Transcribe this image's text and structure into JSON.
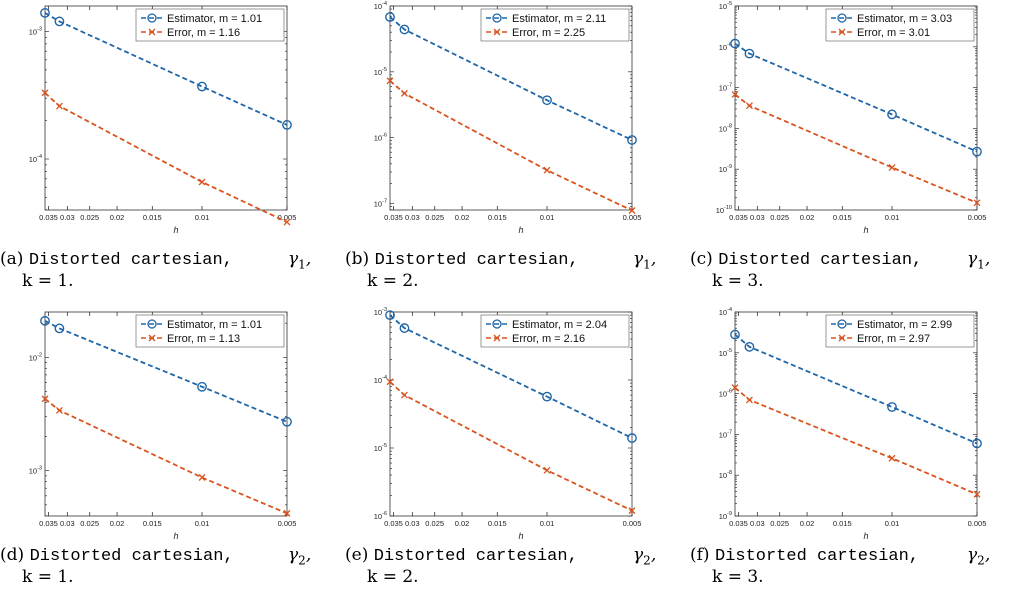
{
  "colors": {
    "estimator": "#1f66a8",
    "error": "#d9541e",
    "axis": "#333333"
  },
  "figures": [
    {
      "tag": "(a)",
      "caption_text": "Distorted cartesian,",
      "gamma_base": "γ",
      "gamma_sub": "1",
      "k_line": "k = 1."
    },
    {
      "tag": "(b)",
      "caption_text": "Distorted cartesian,",
      "gamma_base": "γ",
      "gamma_sub": "1",
      "k_line": "k = 2."
    },
    {
      "tag": "(c)",
      "caption_text": "Distorted cartesian,",
      "gamma_base": "γ",
      "gamma_sub": "1",
      "k_line": "k = 3."
    },
    {
      "tag": "(d)",
      "caption_text": "Distorted cartesian,",
      "gamma_base": "γ",
      "gamma_sub": "2",
      "k_line": "k = 1."
    },
    {
      "tag": "(e)",
      "caption_text": "Distorted cartesian,",
      "gamma_base": "γ",
      "gamma_sub": "2",
      "k_line": "k = 2."
    },
    {
      "tag": "(f)",
      "caption_text": "Distorted cartesian,",
      "gamma_base": "γ",
      "gamma_sub": "2",
      "k_line": "k = 3."
    }
  ],
  "chart_data": [
    {
      "type": "line",
      "xlabel": "h",
      "x_scale": "log-reversed",
      "y_scale": "log",
      "x_ticks": [
        "0.035",
        "0.03",
        "0.025",
        "0.02",
        "0.015",
        "0.01",
        "0.005"
      ],
      "x_tick_values": [
        0.035,
        0.03,
        0.025,
        0.02,
        0.015,
        0.01,
        0.005
      ],
      "xlim": [
        0.036,
        0.005
      ],
      "ylim_exp": [
        -4.4,
        -2.8
      ],
      "y_ticks": [
        {
          "base": "10",
          "exp": "-3"
        },
        {
          "base": "10",
          "exp": "-4"
        }
      ],
      "y_tick_exps": [
        -3,
        -4
      ],
      "legend_position": "top-right",
      "x": [
        0.036,
        0.032,
        0.01,
        0.005
      ],
      "series": [
        {
          "name": "Estimator, m = 1.01",
          "marker": "circle",
          "values": [
            0.0014,
            0.0012,
            0.00037,
            0.000185
          ]
        },
        {
          "name": "Error, m = 1.16",
          "marker": "x",
          "values": [
            0.00033,
            0.00026,
            6.6e-05,
            3.2e-05
          ]
        }
      ]
    },
    {
      "type": "line",
      "xlabel": "h",
      "x_scale": "log-reversed",
      "y_scale": "log",
      "x_ticks": [
        "0.035",
        "0.03",
        "0.025",
        "0.02",
        "0.015",
        "0.01",
        "0.005"
      ],
      "x_tick_values": [
        0.035,
        0.03,
        0.025,
        0.02,
        0.015,
        0.01,
        0.005
      ],
      "xlim": [
        0.036,
        0.005
      ],
      "ylim_exp": [
        -7.1,
        -4
      ],
      "y_ticks": [
        {
          "base": "10",
          "exp": "-4"
        },
        {
          "base": "10",
          "exp": "-5"
        },
        {
          "base": "10",
          "exp": "-6"
        },
        {
          "base": "10",
          "exp": "-7"
        }
      ],
      "y_tick_exps": [
        -4,
        -5,
        -6,
        -7
      ],
      "legend_position": "top-right",
      "x": [
        0.036,
        0.032,
        0.01,
        0.005
      ],
      "series": [
        {
          "name": "Estimator, m = 2.11",
          "marker": "circle",
          "values": [
            6.8e-05,
            4.4e-05,
            3.7e-06,
            9.2e-07
          ]
        },
        {
          "name": "Error, m = 2.25",
          "marker": "x",
          "values": [
            7.3e-06,
            4.7e-06,
            3.2e-07,
            7.8e-08
          ]
        }
      ]
    },
    {
      "type": "line",
      "xlabel": "h",
      "x_scale": "log-reversed",
      "y_scale": "log",
      "x_ticks": [
        "0.035",
        "0.03",
        "0.025",
        "0.02",
        "0.015",
        "0.01",
        "0.005"
      ],
      "x_tick_values": [
        0.035,
        0.03,
        0.025,
        0.02,
        0.015,
        0.01,
        0.005
      ],
      "xlim": [
        0.036,
        0.005
      ],
      "ylim_exp": [
        -10,
        -5
      ],
      "y_ticks": [
        {
          "base": "10",
          "exp": "-5"
        },
        {
          "base": "10",
          "exp": "-6"
        },
        {
          "base": "10",
          "exp": "-7"
        },
        {
          "base": "10",
          "exp": "-8"
        },
        {
          "base": "10",
          "exp": "-9"
        },
        {
          "base": "10",
          "exp": "-10"
        }
      ],
      "y_tick_exps": [
        -5,
        -6,
        -7,
        -8,
        -9,
        -10
      ],
      "legend_position": "top-right",
      "x": [
        0.036,
        0.032,
        0.01,
        0.005
      ],
      "series": [
        {
          "name": "Estimator, m = 3.03",
          "marker": "circle",
          "values": [
            1.2e-06,
            6.8e-07,
            2.2e-08,
            2.7e-09
          ]
        },
        {
          "name": "Error, m = 3.01",
          "marker": "x",
          "values": [
            6.8e-08,
            3.6e-08,
            1.1e-09,
            1.5e-10
          ]
        }
      ]
    },
    {
      "type": "line",
      "xlabel": "h",
      "x_scale": "log-reversed",
      "y_scale": "log",
      "x_ticks": [
        "0.035",
        "0.03",
        "0.025",
        "0.02",
        "0.015",
        "0.01",
        "0.005"
      ],
      "x_tick_values": [
        0.035,
        0.03,
        0.025,
        0.02,
        0.015,
        0.01,
        0.005
      ],
      "xlim": [
        0.036,
        0.005
      ],
      "ylim_exp": [
        -3.4,
        -1.6
      ],
      "y_ticks": [
        {
          "base": "10",
          "exp": "-2"
        },
        {
          "base": "10",
          "exp": "-3"
        }
      ],
      "y_tick_exps": [
        -2,
        -3
      ],
      "legend_position": "top-right",
      "x": [
        0.036,
        0.032,
        0.01,
        0.005
      ],
      "series": [
        {
          "name": "Estimator, m = 1.01",
          "marker": "circle",
          "values": [
            0.021,
            0.018,
            0.0055,
            0.0027
          ]
        },
        {
          "name": "Error, m = 1.13",
          "marker": "x",
          "values": [
            0.0043,
            0.0034,
            0.00087,
            0.00042
          ]
        }
      ]
    },
    {
      "type": "line",
      "xlabel": "h",
      "x_scale": "log-reversed",
      "y_scale": "log",
      "x_ticks": [
        "0.035",
        "0.03",
        "0.025",
        "0.02",
        "0.015",
        "0.01",
        "0.005"
      ],
      "x_tick_values": [
        0.035,
        0.03,
        0.025,
        0.02,
        0.015,
        0.01,
        0.005
      ],
      "xlim": [
        0.036,
        0.005
      ],
      "ylim_exp": [
        -6,
        -3
      ],
      "y_ticks": [
        {
          "base": "10",
          "exp": "-3"
        },
        {
          "base": "10",
          "exp": "-4"
        },
        {
          "base": "10",
          "exp": "-5"
        },
        {
          "base": "10",
          "exp": "-6"
        }
      ],
      "y_tick_exps": [
        -3,
        -4,
        -5,
        -6
      ],
      "legend_position": "top-right",
      "x": [
        0.036,
        0.032,
        0.01,
        0.005
      ],
      "series": [
        {
          "name": "Estimator, m = 2.04",
          "marker": "circle",
          "values": [
            0.0009,
            0.00058,
            5.7e-05,
            1.4e-05
          ]
        },
        {
          "name": "Error, m = 2.16",
          "marker": "x",
          "values": [
            9.4e-05,
            6e-05,
            4.7e-06,
            1.2e-06
          ]
        }
      ]
    },
    {
      "type": "line",
      "xlabel": "h",
      "x_scale": "log-reversed",
      "y_scale": "log",
      "x_ticks": [
        "0.035",
        "0.03",
        "0.025",
        "0.02",
        "0.015",
        "0.01",
        "0.005"
      ],
      "x_tick_values": [
        0.035,
        0.03,
        0.025,
        0.02,
        0.015,
        0.01,
        0.005
      ],
      "xlim": [
        0.036,
        0.005
      ],
      "ylim_exp": [
        -9,
        -4
      ],
      "y_ticks": [
        {
          "base": "10",
          "exp": "-4"
        },
        {
          "base": "10",
          "exp": "-5"
        },
        {
          "base": "10",
          "exp": "-6"
        },
        {
          "base": "10",
          "exp": "-7"
        },
        {
          "base": "10",
          "exp": "-8"
        },
        {
          "base": "10",
          "exp": "-9"
        }
      ],
      "y_tick_exps": [
        -4,
        -5,
        -6,
        -7,
        -8,
        -9
      ],
      "legend_position": "top-right",
      "x": [
        0.036,
        0.032,
        0.01,
        0.005
      ],
      "series": [
        {
          "name": "Estimator, m = 2.99",
          "marker": "circle",
          "values": [
            2.8e-05,
            1.4e-05,
            4.7e-07,
            6e-08
          ]
        },
        {
          "name": "Error, m = 2.97",
          "marker": "x",
          "values": [
            1.4e-06,
            7e-07,
            2.6e-08,
            3.4e-09
          ]
        }
      ]
    }
  ]
}
